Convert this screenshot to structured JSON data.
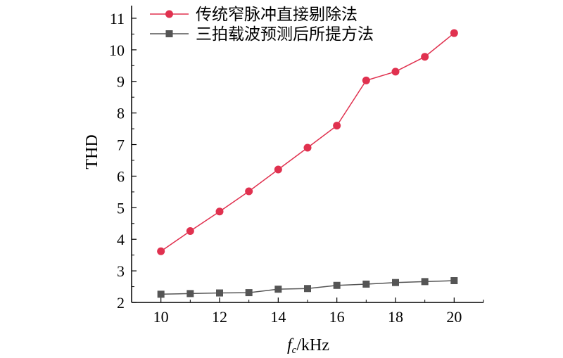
{
  "chart_data": {
    "type": "line",
    "xlabel_main": "f",
    "xlabel_sub": "c",
    "xlabel_unit": "/kHz",
    "ylabel": "THD",
    "xlim": [
      9,
      21
    ],
    "ylim": [
      2,
      11.4
    ],
    "x_ticks": [
      10,
      12,
      14,
      16,
      18,
      20
    ],
    "y_ticks": [
      2,
      3,
      4,
      5,
      6,
      7,
      8,
      9,
      10,
      11
    ],
    "x": [
      10,
      11,
      12,
      13,
      14,
      15,
      16,
      17,
      18,
      19,
      20
    ],
    "grid": false,
    "legend_position": "top-left",
    "series": [
      {
        "name": "传统窄脉冲直接剔除法",
        "marker": "circle",
        "color": "#e0314f",
        "values": [
          3.62,
          4.26,
          4.88,
          5.52,
          6.21,
          6.9,
          7.6,
          9.03,
          9.31,
          9.78,
          10.53
        ]
      },
      {
        "name": "三拍载波预测后所提方法",
        "marker": "square",
        "color": "#555555",
        "values": [
          2.26,
          2.28,
          2.3,
          2.31,
          2.42,
          2.44,
          2.54,
          2.58,
          2.63,
          2.66,
          2.69
        ]
      }
    ]
  }
}
